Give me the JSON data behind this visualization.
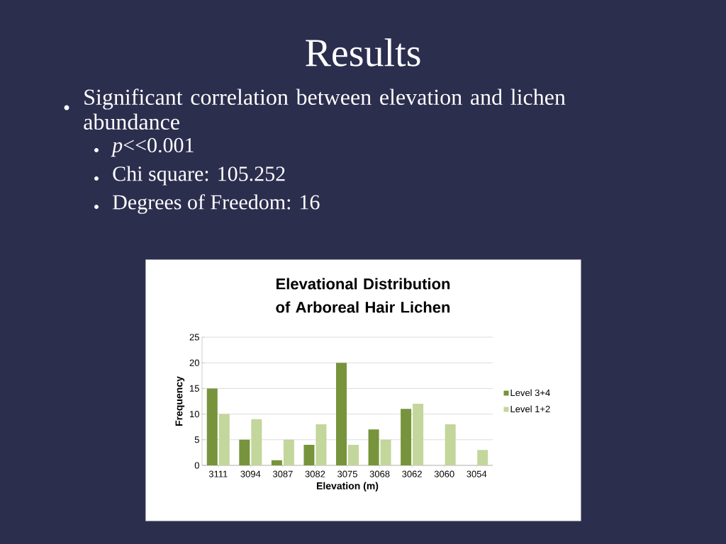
{
  "chart_data": {
    "type": "bar",
    "title": "Elevational Distribution of Arboreal Hair Lichen",
    "xlabel": "Elevation (m)",
    "ylabel": "Frequency",
    "categories": [
      "3111",
      "3094",
      "3087",
      "3082",
      "3075",
      "3068",
      "3062",
      "3060",
      "3054"
    ],
    "series": [
      {
        "name": "Level 3+4",
        "color": "#77933c",
        "values": [
          15,
          5,
          1,
          4,
          20,
          7,
          11,
          0,
          0
        ]
      },
      {
        "name": "Level 1+2",
        "color": "#c3d69b",
        "values": [
          10,
          9,
          5,
          8,
          4,
          5,
          12,
          8,
          3
        ]
      }
    ],
    "ylim": [
      0,
      25
    ],
    "yticks": [
      0,
      5,
      10,
      15,
      20,
      25
    ],
    "grid": "y",
    "legend": "right",
    "annotations": [
      "Results",
      "Significant correlation between elevation and lichen abundance",
      "*p*<<0.001",
      "Chi square: 105.252",
      "Degrees of Freedom: 16"
    ]
  }
}
